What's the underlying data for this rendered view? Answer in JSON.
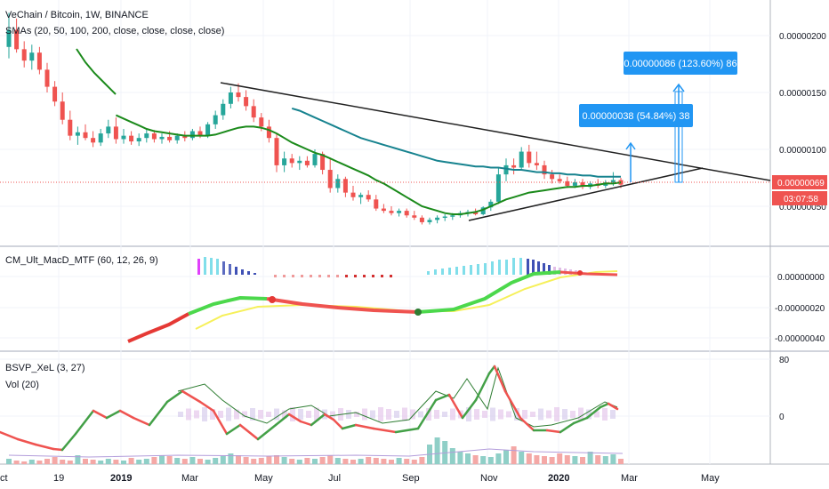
{
  "header": {
    "title": "VeChain / Bitcoin, 1W, BINANCE",
    "indicator_label": "SMAs (20, 50, 100, 200, close, close, close, close)"
  },
  "panes": {
    "macd_label": "CM_Ult_MacD_MTF (60, 12, 26, 9)",
    "bsvp_label": "BSVP_XeL (3, 27)",
    "vol_label": "Vol (20)"
  },
  "colors": {
    "up": "#26a69a",
    "down": "#ef5350",
    "sma_green": "#1b8a1b",
    "sma_teal": "#17838f",
    "trendline": "#222222",
    "callout_bg": "#2196f3",
    "price_line": "#ef5350"
  },
  "callouts": {
    "upper": "0.00000086 (123.60%) 86",
    "lower": "0.00000038 (54.84%) 38"
  },
  "price_badge": {
    "price": "0.00000069",
    "countdown": "03:07:58"
  },
  "x_axis_labels": [
    "ct",
    "19",
    "2019",
    "Mar",
    "May",
    "Jul",
    "Sep",
    "Nov",
    "2020",
    "Mar",
    "May"
  ],
  "chart_data": [
    {
      "type": "candlestick",
      "title": "VeChain / Bitcoin, 1W, BINANCE",
      "y_ticks": [
        "0.00000200",
        "0.00000150",
        "0.00000100",
        "0.00000050"
      ],
      "ylim": [
        2e-07,
        2.4e-06
      ],
      "last_price": "0.00000069",
      "candles": [
        {
          "o": 1.9,
          "h": 2.2,
          "l": 1.8,
          "c": 2.05
        },
        {
          "o": 2.05,
          "h": 2.15,
          "l": 1.85,
          "c": 1.88
        },
        {
          "o": 1.88,
          "h": 1.95,
          "l": 1.72,
          "c": 1.78
        },
        {
          "o": 1.78,
          "h": 1.92,
          "l": 1.7,
          "c": 1.85
        },
        {
          "o": 1.85,
          "h": 1.9,
          "l": 1.66,
          "c": 1.7
        },
        {
          "o": 1.7,
          "h": 1.76,
          "l": 1.5,
          "c": 1.55
        },
        {
          "o": 1.55,
          "h": 1.6,
          "l": 1.38,
          "c": 1.42
        },
        {
          "o": 1.42,
          "h": 1.5,
          "l": 1.22,
          "c": 1.26
        },
        {
          "o": 1.26,
          "h": 1.34,
          "l": 1.08,
          "c": 1.12
        },
        {
          "o": 1.12,
          "h": 1.2,
          "l": 1.04,
          "c": 1.15
        },
        {
          "o": 1.15,
          "h": 1.22,
          "l": 1.08,
          "c": 1.1
        },
        {
          "o": 1.1,
          "h": 1.16,
          "l": 1.02,
          "c": 1.06
        },
        {
          "o": 1.06,
          "h": 1.18,
          "l": 1.03,
          "c": 1.14
        },
        {
          "o": 1.14,
          "h": 1.26,
          "l": 1.1,
          "c": 1.2
        },
        {
          "o": 1.2,
          "h": 1.28,
          "l": 1.05,
          "c": 1.09
        },
        {
          "o": 1.09,
          "h": 1.18,
          "l": 1.05,
          "c": 1.12
        },
        {
          "o": 1.12,
          "h": 1.16,
          "l": 1.04,
          "c": 1.07
        },
        {
          "o": 1.07,
          "h": 1.14,
          "l": 1.03,
          "c": 1.1
        },
        {
          "o": 1.1,
          "h": 1.18,
          "l": 1.06,
          "c": 1.14
        },
        {
          "o": 1.14,
          "h": 1.17,
          "l": 1.06,
          "c": 1.09
        },
        {
          "o": 1.09,
          "h": 1.14,
          "l": 1.05,
          "c": 1.11
        },
        {
          "o": 1.11,
          "h": 1.16,
          "l": 1.06,
          "c": 1.08
        },
        {
          "o": 1.08,
          "h": 1.14,
          "l": 1.05,
          "c": 1.12
        },
        {
          "o": 1.12,
          "h": 1.16,
          "l": 1.07,
          "c": 1.1
        },
        {
          "o": 1.1,
          "h": 1.18,
          "l": 1.08,
          "c": 1.16
        },
        {
          "o": 1.16,
          "h": 1.2,
          "l": 1.1,
          "c": 1.12
        },
        {
          "o": 1.12,
          "h": 1.24,
          "l": 1.1,
          "c": 1.22
        },
        {
          "o": 1.22,
          "h": 1.34,
          "l": 1.18,
          "c": 1.3
        },
        {
          "o": 1.3,
          "h": 1.44,
          "l": 1.26,
          "c": 1.4
        },
        {
          "o": 1.4,
          "h": 1.55,
          "l": 1.36,
          "c": 1.5
        },
        {
          "o": 1.5,
          "h": 1.58,
          "l": 1.42,
          "c": 1.46
        },
        {
          "o": 1.46,
          "h": 1.52,
          "l": 1.34,
          "c": 1.38
        },
        {
          "o": 1.38,
          "h": 1.44,
          "l": 1.24,
          "c": 1.28
        },
        {
          "o": 1.28,
          "h": 1.32,
          "l": 1.16,
          "c": 1.2
        },
        {
          "o": 1.2,
          "h": 1.26,
          "l": 1.06,
          "c": 1.1
        },
        {
          "o": 1.1,
          "h": 1.14,
          "l": 0.8,
          "c": 0.86
        },
        {
          "o": 0.86,
          "h": 0.98,
          "l": 0.8,
          "c": 0.92
        },
        {
          "o": 0.92,
          "h": 0.96,
          "l": 0.84,
          "c": 0.88
        },
        {
          "o": 0.88,
          "h": 0.94,
          "l": 0.82,
          "c": 0.9
        },
        {
          "o": 0.9,
          "h": 0.94,
          "l": 0.84,
          "c": 0.86
        },
        {
          "o": 0.86,
          "h": 1.0,
          "l": 0.84,
          "c": 0.96
        },
        {
          "o": 0.96,
          "h": 0.98,
          "l": 0.78,
          "c": 0.82
        },
        {
          "o": 0.82,
          "h": 0.92,
          "l": 0.62,
          "c": 0.66
        },
        {
          "o": 0.66,
          "h": 0.78,
          "l": 0.62,
          "c": 0.74
        },
        {
          "o": 0.74,
          "h": 0.76,
          "l": 0.58,
          "c": 0.62
        },
        {
          "o": 0.62,
          "h": 0.68,
          "l": 0.55,
          "c": 0.58
        },
        {
          "o": 0.58,
          "h": 0.62,
          "l": 0.52,
          "c": 0.6
        },
        {
          "o": 0.6,
          "h": 0.64,
          "l": 0.54,
          "c": 0.56
        },
        {
          "o": 0.56,
          "h": 0.6,
          "l": 0.46,
          "c": 0.48
        },
        {
          "o": 0.48,
          "h": 0.52,
          "l": 0.44,
          "c": 0.46
        },
        {
          "o": 0.46,
          "h": 0.5,
          "l": 0.42,
          "c": 0.44
        },
        {
          "o": 0.44,
          "h": 0.48,
          "l": 0.41,
          "c": 0.46
        },
        {
          "o": 0.46,
          "h": 0.48,
          "l": 0.4,
          "c": 0.42
        },
        {
          "o": 0.42,
          "h": 0.46,
          "l": 0.38,
          "c": 0.4
        },
        {
          "o": 0.4,
          "h": 0.42,
          "l": 0.34,
          "c": 0.36
        },
        {
          "o": 0.36,
          "h": 0.4,
          "l": 0.34,
          "c": 0.38
        },
        {
          "o": 0.38,
          "h": 0.42,
          "l": 0.35,
          "c": 0.4
        },
        {
          "o": 0.4,
          "h": 0.43,
          "l": 0.37,
          "c": 0.41
        },
        {
          "o": 0.41,
          "h": 0.44,
          "l": 0.38,
          "c": 0.42
        },
        {
          "o": 0.42,
          "h": 0.46,
          "l": 0.4,
          "c": 0.44
        },
        {
          "o": 0.44,
          "h": 0.47,
          "l": 0.41,
          "c": 0.45
        },
        {
          "o": 0.45,
          "h": 0.48,
          "l": 0.42,
          "c": 0.43
        },
        {
          "o": 0.43,
          "h": 0.5,
          "l": 0.42,
          "c": 0.49
        },
        {
          "o": 0.49,
          "h": 0.56,
          "l": 0.46,
          "c": 0.54
        },
        {
          "o": 0.54,
          "h": 0.84,
          "l": 0.52,
          "c": 0.78
        },
        {
          "o": 0.78,
          "h": 0.92,
          "l": 0.72,
          "c": 0.86
        },
        {
          "o": 0.86,
          "h": 0.92,
          "l": 0.78,
          "c": 0.84
        },
        {
          "o": 0.84,
          "h": 1.02,
          "l": 0.82,
          "c": 0.98
        },
        {
          "o": 0.98,
          "h": 1.04,
          "l": 0.84,
          "c": 0.88
        },
        {
          "o": 0.88,
          "h": 0.98,
          "l": 0.82,
          "c": 0.86
        },
        {
          "o": 0.86,
          "h": 0.9,
          "l": 0.74,
          "c": 0.78
        },
        {
          "o": 0.78,
          "h": 0.82,
          "l": 0.7,
          "c": 0.74
        },
        {
          "o": 0.74,
          "h": 0.78,
          "l": 0.7,
          "c": 0.72
        },
        {
          "o": 0.72,
          "h": 0.76,
          "l": 0.66,
          "c": 0.68
        },
        {
          "o": 0.68,
          "h": 0.74,
          "l": 0.66,
          "c": 0.71
        },
        {
          "o": 0.71,
          "h": 0.74,
          "l": 0.65,
          "c": 0.67
        },
        {
          "o": 0.67,
          "h": 0.72,
          "l": 0.65,
          "c": 0.7
        },
        {
          "o": 0.7,
          "h": 0.74,
          "l": 0.66,
          "c": 0.68
        },
        {
          "o": 0.68,
          "h": 0.73,
          "l": 0.66,
          "c": 0.71
        },
        {
          "o": 0.71,
          "h": 0.8,
          "l": 0.68,
          "c": 0.73
        },
        {
          "o": 0.73,
          "h": 0.75,
          "l": 0.66,
          "c": 0.69
        }
      ],
      "sma_green": [
        null,
        null,
        null,
        null,
        null,
        null,
        null,
        null,
        null,
        null,
        null,
        null,
        null,
        null,
        1.3,
        1.27,
        1.24,
        1.21,
        1.18,
        1.16,
        1.15,
        1.14,
        1.13,
        1.12,
        1.12,
        1.12,
        1.12,
        1.13,
        1.15,
        1.17,
        1.19,
        1.2,
        1.2,
        1.19,
        1.17,
        1.14,
        1.1,
        1.06,
        1.03,
        1.0,
        0.97,
        0.95,
        0.92,
        0.89,
        0.86,
        0.83,
        0.8,
        0.77,
        0.73,
        0.7,
        0.66,
        0.62,
        0.58,
        0.54,
        0.5,
        0.48,
        0.46,
        0.44,
        0.43,
        0.43,
        0.44,
        0.45,
        0.47,
        0.5,
        0.53,
        0.56,
        0.58,
        0.6,
        0.62,
        0.63,
        0.64,
        0.65,
        0.66,
        0.67,
        0.67,
        0.68,
        0.68,
        0.69,
        0.7,
        0.7,
        0.71
      ],
      "sma_teal": [
        null,
        null,
        null,
        null,
        null,
        null,
        null,
        null,
        null,
        null,
        null,
        null,
        null,
        null,
        null,
        null,
        null,
        null,
        null,
        null,
        null,
        null,
        null,
        null,
        null,
        null,
        null,
        null,
        null,
        null,
        null,
        null,
        null,
        null,
        null,
        null,
        null,
        1.36,
        1.34,
        1.31,
        1.28,
        1.25,
        1.22,
        1.19,
        1.16,
        1.13,
        1.1,
        1.08,
        1.06,
        1.04,
        1.02,
        1.0,
        0.98,
        0.96,
        0.94,
        0.92,
        0.9,
        0.89,
        0.88,
        0.87,
        0.86,
        0.85,
        0.85,
        0.84,
        0.84,
        0.83,
        0.82,
        0.82,
        0.81,
        0.8,
        0.8,
        0.79,
        0.79,
        0.78,
        0.78,
        0.77,
        0.77,
        0.76,
        0.76,
        0.76,
        0.76
      ]
    },
    {
      "type": "line",
      "title": "CM_Ult_MacD_MTF (60, 12, 26, 9)",
      "y_ticks": [
        "0.00000000",
        "-0.00000020",
        "-0.00000040"
      ],
      "ylim": [
        -4.6e-07,
        1.4e-07
      ]
    },
    {
      "type": "line",
      "title": "BSVP_XeL (3, 27)",
      "y_ticks": [
        "80",
        "0"
      ],
      "ylim": [
        -60,
        80
      ]
    }
  ]
}
